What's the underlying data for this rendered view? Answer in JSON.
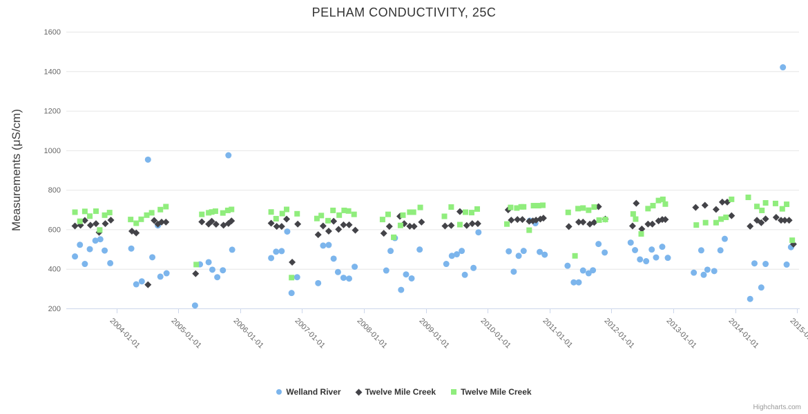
{
  "title": "PELHAM CONDUCTIVITY, 25C",
  "credits_label": "Highcharts.com",
  "chart_data": {
    "type": "scatter",
    "title": "PELHAM CONDUCTIVITY, 25C",
    "xlabel": "",
    "ylabel": "Measurements (μS/cm)",
    "ylim": [
      200,
      1600
    ],
    "y_ticks": [
      200,
      400,
      600,
      800,
      1000,
      1200,
      1400,
      1600
    ],
    "x_tick_years": [
      2004,
      2005,
      2006,
      2007,
      2008,
      2009,
      2010,
      2011,
      2012,
      2013,
      2014,
      2015
    ],
    "x_tick_labels": [
      "2004-01-01",
      "2005-01-01",
      "2006-01-01",
      "2007-01-01",
      "2008-01-01",
      "2009-01-01",
      "2010-01-01",
      "2011-01-01",
      "2012-01-01",
      "2013-01-01",
      "2014-01-01",
      "2015-01-01"
    ],
    "xlim_years": [
      2003.19,
      2015.03
    ],
    "grid": true,
    "legend_position": "bottom",
    "background_color": "#ffffff",
    "grid_color": "#e6e6e6",
    "axis_line_color": "#ccd6eb",
    "label_color": "#666666",
    "series": [
      {
        "name": "Welland River",
        "color": "#7cb5ec",
        "marker": "circle",
        "points": [
          [
            2003.33,
            463
          ],
          [
            2003.41,
            522
          ],
          [
            2003.49,
            425
          ],
          [
            2003.57,
            500
          ],
          [
            2003.66,
            543
          ],
          [
            2003.74,
            550
          ],
          [
            2003.81,
            493
          ],
          [
            2003.9,
            429
          ],
          [
            2004.24,
            503
          ],
          [
            2004.32,
            322
          ],
          [
            2004.41,
            337
          ],
          [
            2004.51,
            953
          ],
          [
            2004.58,
            459
          ],
          [
            2004.67,
            620
          ],
          [
            2004.71,
            361
          ],
          [
            2004.81,
            378
          ],
          [
            2005.27,
            215
          ],
          [
            2005.35,
            423
          ],
          [
            2005.49,
            434
          ],
          [
            2005.55,
            396
          ],
          [
            2005.63,
            358
          ],
          [
            2005.72,
            393
          ],
          [
            2005.81,
            975
          ],
          [
            2005.87,
            497
          ],
          [
            2006.5,
            455
          ],
          [
            2006.58,
            487
          ],
          [
            2006.67,
            490
          ],
          [
            2006.76,
            589
          ],
          [
            2006.83,
            278
          ],
          [
            2006.92,
            358
          ],
          [
            2007.26,
            328
          ],
          [
            2007.34,
            518
          ],
          [
            2007.43,
            521
          ],
          [
            2007.51,
            452
          ],
          [
            2007.58,
            384
          ],
          [
            2007.67,
            355
          ],
          [
            2007.76,
            351
          ],
          [
            2007.85,
            411
          ],
          [
            2008.36,
            392
          ],
          [
            2008.43,
            491
          ],
          [
            2008.5,
            556
          ],
          [
            2008.6,
            294
          ],
          [
            2008.68,
            372
          ],
          [
            2008.77,
            352
          ],
          [
            2008.9,
            498
          ],
          [
            2009.33,
            425
          ],
          [
            2009.42,
            466
          ],
          [
            2009.5,
            474
          ],
          [
            2009.58,
            491
          ],
          [
            2009.63,
            370
          ],
          [
            2009.77,
            405
          ],
          [
            2009.85,
            585
          ],
          [
            2010.34,
            489
          ],
          [
            2010.42,
            386
          ],
          [
            2010.5,
            466
          ],
          [
            2010.58,
            491
          ],
          [
            2010.68,
            644
          ],
          [
            2010.77,
            631
          ],
          [
            2010.84,
            486
          ],
          [
            2010.92,
            472
          ],
          [
            2011.29,
            416
          ],
          [
            2011.39,
            332
          ],
          [
            2011.47,
            332
          ],
          [
            2011.54,
            392
          ],
          [
            2011.63,
            378
          ],
          [
            2011.7,
            393
          ],
          [
            2011.79,
            526
          ],
          [
            2011.89,
            483
          ],
          [
            2012.31,
            533
          ],
          [
            2012.38,
            495
          ],
          [
            2012.46,
            448
          ],
          [
            2012.56,
            439
          ],
          [
            2012.65,
            498
          ],
          [
            2012.72,
            458
          ],
          [
            2012.82,
            512
          ],
          [
            2012.91,
            456
          ],
          [
            2013.33,
            381
          ],
          [
            2013.45,
            494
          ],
          [
            2013.49,
            370
          ],
          [
            2013.55,
            396
          ],
          [
            2013.66,
            389
          ],
          [
            2013.76,
            494
          ],
          [
            2013.83,
            552
          ],
          [
            2014.24,
            248
          ],
          [
            2014.31,
            428
          ],
          [
            2014.42,
            306
          ],
          [
            2014.49,
            425
          ],
          [
            2014.77,
            1420
          ],
          [
            2014.83,
            422
          ],
          [
            2014.9,
            510
          ]
        ]
      },
      {
        "name": "Twelve Mile Creek",
        "color": "#434348",
        "marker": "diamond",
        "points": [
          [
            2003.33,
            617
          ],
          [
            2003.42,
            621
          ],
          [
            2003.49,
            645
          ],
          [
            2003.58,
            621
          ],
          [
            2003.67,
            629
          ],
          [
            2003.72,
            585
          ],
          [
            2003.82,
            629
          ],
          [
            2003.91,
            647
          ],
          [
            2004.25,
            591
          ],
          [
            2004.32,
            582
          ],
          [
            2004.51,
            320
          ],
          [
            2004.61,
            645
          ],
          [
            2004.67,
            627
          ],
          [
            2004.73,
            637
          ],
          [
            2004.8,
            637
          ],
          [
            2005.28,
            376
          ],
          [
            2005.38,
            638
          ],
          [
            2005.49,
            627
          ],
          [
            2005.54,
            641
          ],
          [
            2005.61,
            626
          ],
          [
            2005.73,
            621
          ],
          [
            2005.81,
            630
          ],
          [
            2005.86,
            643
          ],
          [
            2006.5,
            631
          ],
          [
            2006.59,
            615
          ],
          [
            2006.67,
            615
          ],
          [
            2006.75,
            652
          ],
          [
            2006.84,
            434
          ],
          [
            2006.93,
            627
          ],
          [
            2007.26,
            573
          ],
          [
            2007.34,
            617
          ],
          [
            2007.43,
            591
          ],
          [
            2007.51,
            641
          ],
          [
            2007.59,
            600
          ],
          [
            2007.67,
            623
          ],
          [
            2007.76,
            623
          ],
          [
            2007.86,
            596
          ],
          [
            2008.32,
            580
          ],
          [
            2008.41,
            615
          ],
          [
            2008.58,
            666
          ],
          [
            2008.65,
            629
          ],
          [
            2008.74,
            616
          ],
          [
            2008.81,
            615
          ],
          [
            2008.93,
            637
          ],
          [
            2009.31,
            617
          ],
          [
            2009.41,
            620
          ],
          [
            2009.55,
            690
          ],
          [
            2009.66,
            620
          ],
          [
            2009.75,
            629
          ],
          [
            2009.84,
            629
          ],
          [
            2010.33,
            699
          ],
          [
            2010.38,
            647
          ],
          [
            2010.48,
            650
          ],
          [
            2010.56,
            650
          ],
          [
            2010.67,
            641
          ],
          [
            2010.73,
            643
          ],
          [
            2010.78,
            647
          ],
          [
            2010.85,
            652
          ],
          [
            2010.9,
            657
          ],
          [
            2011.31,
            614
          ],
          [
            2011.47,
            637
          ],
          [
            2011.54,
            637
          ],
          [
            2011.65,
            627
          ],
          [
            2011.72,
            635
          ],
          [
            2011.79,
            715
          ],
          [
            2011.9,
            652
          ],
          [
            2012.34,
            617
          ],
          [
            2012.4,
            732
          ],
          [
            2012.49,
            602
          ],
          [
            2012.59,
            627
          ],
          [
            2012.66,
            627
          ],
          [
            2012.76,
            643
          ],
          [
            2012.82,
            650
          ],
          [
            2012.87,
            650
          ],
          [
            2013.36,
            711
          ],
          [
            2013.51,
            722
          ],
          [
            2013.69,
            701
          ],
          [
            2013.79,
            738
          ],
          [
            2013.87,
            738
          ],
          [
            2013.94,
            669
          ],
          [
            2014.24,
            616
          ],
          [
            2014.35,
            646
          ],
          [
            2014.42,
            634
          ],
          [
            2014.49,
            653
          ],
          [
            2014.66,
            661
          ],
          [
            2014.74,
            646
          ],
          [
            2014.8,
            646
          ],
          [
            2014.87,
            646
          ],
          [
            2014.94,
            525
          ]
        ]
      },
      {
        "name": "Twelve Mile Creek",
        "color": "#90ed7d",
        "marker": "square",
        "points": [
          [
            2003.33,
            687
          ],
          [
            2003.41,
            641
          ],
          [
            2003.49,
            691
          ],
          [
            2003.57,
            667
          ],
          [
            2003.67,
            692
          ],
          [
            2003.73,
            597
          ],
          [
            2003.81,
            672
          ],
          [
            2003.89,
            685
          ],
          [
            2004.23,
            650
          ],
          [
            2004.32,
            631
          ],
          [
            2004.4,
            651
          ],
          [
            2004.49,
            672
          ],
          [
            2004.57,
            684
          ],
          [
            2004.71,
            700
          ],
          [
            2004.8,
            715
          ],
          [
            2005.29,
            422
          ],
          [
            2005.38,
            676
          ],
          [
            2005.49,
            684
          ],
          [
            2005.54,
            688
          ],
          [
            2005.6,
            692
          ],
          [
            2005.72,
            683
          ],
          [
            2005.8,
            696
          ],
          [
            2005.86,
            701
          ],
          [
            2006.5,
            688
          ],
          [
            2006.58,
            654
          ],
          [
            2006.68,
            680
          ],
          [
            2006.75,
            701
          ],
          [
            2006.83,
            356
          ],
          [
            2006.92,
            679
          ],
          [
            2007.24,
            655
          ],
          [
            2007.31,
            670
          ],
          [
            2007.42,
            644
          ],
          [
            2007.5,
            696
          ],
          [
            2007.6,
            672
          ],
          [
            2007.68,
            696
          ],
          [
            2007.75,
            693
          ],
          [
            2007.84,
            676
          ],
          [
            2008.3,
            650
          ],
          [
            2008.39,
            676
          ],
          [
            2008.48,
            560
          ],
          [
            2008.59,
            620
          ],
          [
            2008.63,
            672
          ],
          [
            2008.74,
            687
          ],
          [
            2008.8,
            687
          ],
          [
            2008.91,
            711
          ],
          [
            2009.3,
            666
          ],
          [
            2009.41,
            713
          ],
          [
            2009.55,
            624
          ],
          [
            2009.64,
            687
          ],
          [
            2009.74,
            685
          ],
          [
            2009.83,
            703
          ],
          [
            2010.31,
            627
          ],
          [
            2010.37,
            711
          ],
          [
            2010.47,
            708
          ],
          [
            2010.54,
            714
          ],
          [
            2010.58,
            714
          ],
          [
            2010.67,
            596
          ],
          [
            2010.74,
            720
          ],
          [
            2010.82,
            720
          ],
          [
            2010.89,
            722
          ],
          [
            2011.3,
            686
          ],
          [
            2011.41,
            466
          ],
          [
            2011.46,
            705
          ],
          [
            2011.54,
            708
          ],
          [
            2011.63,
            697
          ],
          [
            2011.72,
            713
          ],
          [
            2011.8,
            647
          ],
          [
            2011.9,
            650
          ],
          [
            2012.35,
            678
          ],
          [
            2012.39,
            652
          ],
          [
            2012.48,
            577
          ],
          [
            2012.59,
            705
          ],
          [
            2012.67,
            720
          ],
          [
            2012.76,
            746
          ],
          [
            2012.83,
            752
          ],
          [
            2012.87,
            728
          ],
          [
            2013.37,
            622
          ],
          [
            2013.52,
            634
          ],
          [
            2013.69,
            634
          ],
          [
            2013.77,
            652
          ],
          [
            2013.85,
            661
          ],
          [
            2013.94,
            752
          ],
          [
            2014.21,
            762
          ],
          [
            2014.35,
            716
          ],
          [
            2014.43,
            696
          ],
          [
            2014.49,
            734
          ],
          [
            2014.65,
            731
          ],
          [
            2014.76,
            704
          ],
          [
            2014.83,
            727
          ],
          [
            2014.92,
            545
          ]
        ]
      }
    ]
  }
}
